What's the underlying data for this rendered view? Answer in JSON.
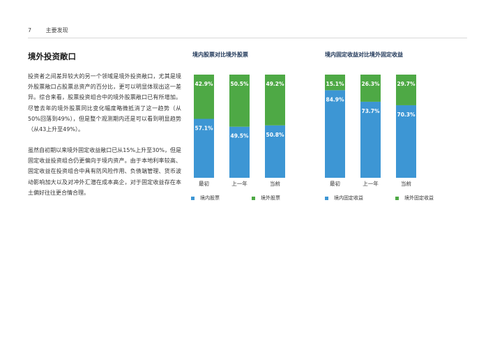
{
  "header": {
    "page_number": "7",
    "section": "主要发现"
  },
  "section_title": "境外投资敞口",
  "paragraphs": [
    "投资者之间差异较大的另一个领域是境外投资敞口，尤其是境外股票敞口占股票总资产的百分比，更可以明显体现出这一差异。综合来看，股票投资组合中的境外股票敞口已有所增加。尽管去年的境外股票同比变化幅度略微抵消了这一趋势（从50%回落到49%），但是整个观测期内还是可以看到明显趋势（从43上升至49%）。",
    "虽然自初期以来境外固定收益敞口已从15%上升至30%，但是固定收益投资组合仍更偏向于境内资产。由于本地利率较高、固定收益在投资组合中具有防风险作用、负债端管理、货币波动影响加大以及对冲外汇潜在成本高企，对于固定收益存在本土偏好往往更合情合理。"
  ],
  "colors": {
    "domestic": "#3d96d4",
    "foreign": "#4ea945"
  },
  "chart_data": [
    {
      "type": "bar",
      "stacked": true,
      "title": "境内股票对比境外股票",
      "categories": [
        "最初",
        "上一年",
        "当前"
      ],
      "series": [
        {
          "name": "境内股票",
          "values": [
            57.1,
            49.5,
            50.8
          ],
          "labels": [
            "57.1%",
            "49.5%",
            "50.8%"
          ]
        },
        {
          "name": "境外股票",
          "values": [
            42.9,
            50.5,
            49.2
          ],
          "labels": [
            "42.9%",
            "50.5%",
            "49.2%"
          ]
        }
      ],
      "ylim": [
        0,
        100
      ]
    },
    {
      "type": "bar",
      "stacked": true,
      "title": "境内固定收益对比境外固定收益",
      "categories": [
        "最初",
        "上一年",
        "当前"
      ],
      "series": [
        {
          "name": "境内固定收益",
          "values": [
            84.9,
            73.7,
            70.3
          ],
          "labels": [
            "84.9%",
            "73.7%",
            "70.3%"
          ]
        },
        {
          "name": "境外固定收益",
          "values": [
            15.1,
            26.3,
            29.7
          ],
          "labels": [
            "15.1%",
            "26.3%",
            "29.7%"
          ]
        }
      ],
      "ylim": [
        0,
        100
      ]
    }
  ]
}
